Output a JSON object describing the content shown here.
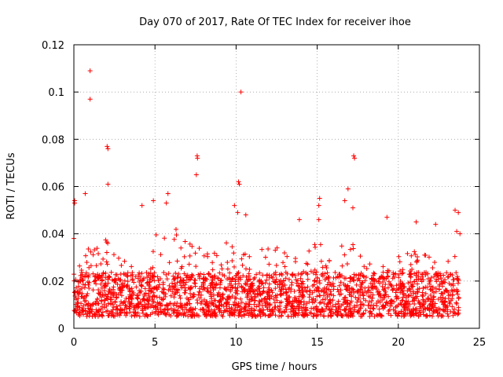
{
  "chart_data": {
    "type": "scatter",
    "title": "Day 070 of 2017, Rate Of TEC Index for receiver ihoe",
    "xlabel": "GPS time / hours",
    "ylabel": "ROTI / TECUs",
    "xlim": [
      0,
      25
    ],
    "ylim": [
      0,
      0.12
    ],
    "xticks": [
      0,
      5,
      10,
      15,
      20,
      25
    ],
    "xtick_labels": [
      "0",
      "5",
      "10",
      "15",
      "20",
      "25"
    ],
    "yticks": [
      0,
      0.02,
      0.04,
      0.06,
      0.08,
      0.1,
      0.12
    ],
    "ytick_labels": [
      "0",
      "0.02",
      "0.04",
      "0.06",
      "0.08",
      "0.1",
      "0.12"
    ],
    "grid": true,
    "marker": "+",
    "color": "#ff0000",
    "series": [
      {
        "name": "ROTI",
        "time_range_hours": [
          0,
          23.75
        ],
        "typical_range": [
          0.005,
          0.03
        ],
        "hourly_upper_envelope": [
          0.025,
          0.036,
          0.038,
          0.035,
          0.03,
          0.04,
          0.045,
          0.04,
          0.032,
          0.038,
          0.035,
          0.03,
          0.038,
          0.032,
          0.035,
          0.038,
          0.032,
          0.04,
          0.03,
          0.028,
          0.034,
          0.034,
          0.03,
          0.032
        ],
        "outliers": [
          {
            "x": 0.05,
            "y": 0.054
          },
          {
            "x": 0.05,
            "y": 0.053
          },
          {
            "x": 0.0,
            "y": 0.038
          },
          {
            "x": 0.7,
            "y": 0.057
          },
          {
            "x": 1.0,
            "y": 0.109
          },
          {
            "x": 1.0,
            "y": 0.097
          },
          {
            "x": 2.05,
            "y": 0.077
          },
          {
            "x": 2.1,
            "y": 0.076
          },
          {
            "x": 2.1,
            "y": 0.061
          },
          {
            "x": 4.2,
            "y": 0.052
          },
          {
            "x": 4.9,
            "y": 0.054
          },
          {
            "x": 5.8,
            "y": 0.057
          },
          {
            "x": 5.7,
            "y": 0.053
          },
          {
            "x": 7.55,
            "y": 0.065
          },
          {
            "x": 7.6,
            "y": 0.073
          },
          {
            "x": 7.62,
            "y": 0.072
          },
          {
            "x": 9.9,
            "y": 0.052
          },
          {
            "x": 10.15,
            "y": 0.062
          },
          {
            "x": 10.2,
            "y": 0.061
          },
          {
            "x": 10.3,
            "y": 0.1
          },
          {
            "x": 10.1,
            "y": 0.049
          },
          {
            "x": 10.6,
            "y": 0.048
          },
          {
            "x": 13.9,
            "y": 0.046
          },
          {
            "x": 15.15,
            "y": 0.055
          },
          {
            "x": 15.1,
            "y": 0.052
          },
          {
            "x": 15.1,
            "y": 0.046
          },
          {
            "x": 16.7,
            "y": 0.054
          },
          {
            "x": 16.9,
            "y": 0.059
          },
          {
            "x": 17.25,
            "y": 0.073
          },
          {
            "x": 17.3,
            "y": 0.072
          },
          {
            "x": 17.2,
            "y": 0.051
          },
          {
            "x": 19.3,
            "y": 0.047
          },
          {
            "x": 21.1,
            "y": 0.045
          },
          {
            "x": 22.3,
            "y": 0.044
          },
          {
            "x": 23.5,
            "y": 0.05
          },
          {
            "x": 23.7,
            "y": 0.049
          },
          {
            "x": 23.6,
            "y": 0.041
          },
          {
            "x": 23.8,
            "y": 0.04
          }
        ]
      }
    ]
  }
}
